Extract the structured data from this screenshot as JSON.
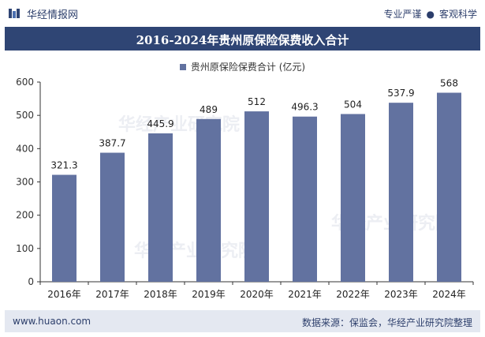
{
  "header": {
    "brand": "华经情报网",
    "slogan_left": "专业严谨",
    "slogan_right": "客观科学"
  },
  "title": "2016-2024年贵州原保险保费收入合计",
  "legend": {
    "label": "贵州原保险保费合计 (亿元)"
  },
  "chart_data": {
    "type": "bar",
    "title": "2016-2024年贵州原保险保费收入合计",
    "categories": [
      "2016年",
      "2017年",
      "2018年",
      "2019年",
      "2020年",
      "2021年",
      "2022年",
      "2023年",
      "2024年"
    ],
    "series": [
      {
        "name": "贵州原保险保费合计 (亿元)",
        "values": [
          321.3,
          387.7,
          445.9,
          489,
          512,
          496.3,
          504,
          537.9,
          568
        ]
      }
    ],
    "value_labels": [
      "321.3",
      "387.7",
      "445.9",
      "489",
      "512",
      "496.3",
      "504",
      "537.9",
      "568"
    ],
    "ylim": [
      0,
      600
    ],
    "yticks": [
      0,
      100,
      200,
      300,
      400,
      500,
      600
    ],
    "grid": false,
    "legend_position": "top-center",
    "bar_color": "#6272a0"
  },
  "footer": {
    "url": "www.huaon.com",
    "source": "数据来源：保监会，华经产业研究院整理"
  }
}
